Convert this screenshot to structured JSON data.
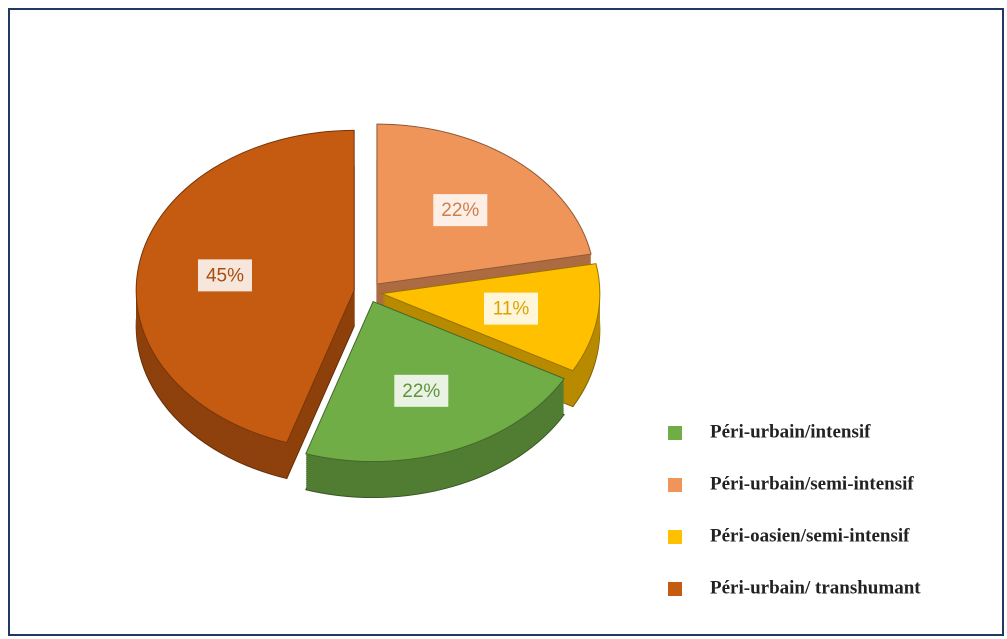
{
  "chart_data": {
    "type": "pie",
    "categories": [
      "Péri-urbain/intensif",
      "Péri-urbain/semi-intensif",
      "Péri-oasien/semi-intensif",
      "Péri-urbain/ transhumant"
    ],
    "values": [
      22,
      22,
      11,
      45
    ],
    "value_labels": [
      "22%",
      "22%",
      "11%",
      "45%"
    ],
    "colors": [
      "#70ad47",
      "#f0955a",
      "#ffc000",
      "#c55a11"
    ],
    "legend": "right"
  }
}
